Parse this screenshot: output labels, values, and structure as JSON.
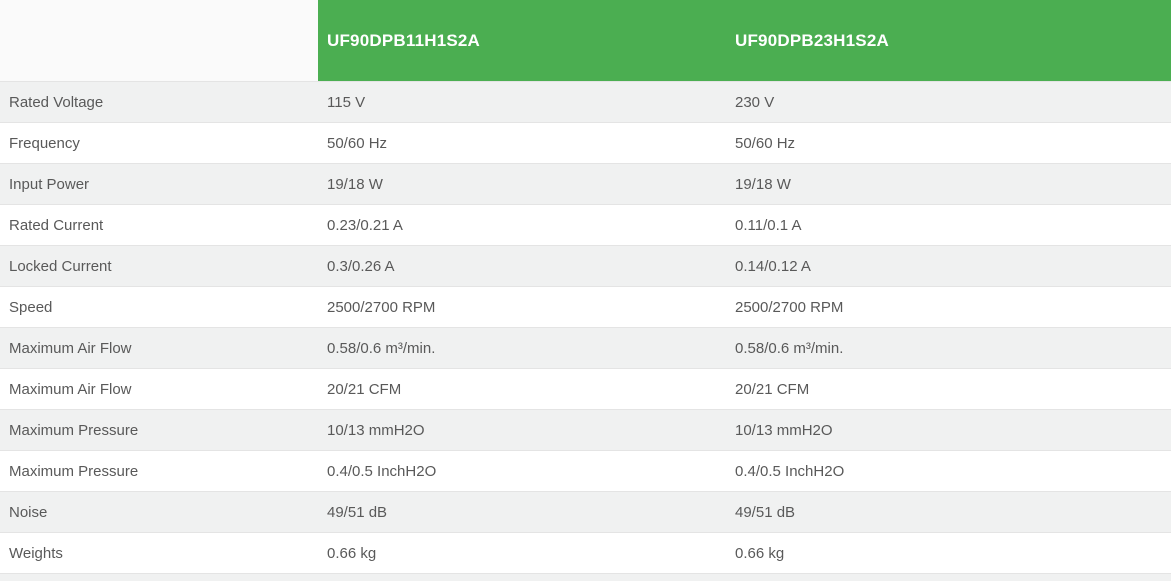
{
  "table": {
    "corner_label": "",
    "columns": [
      "UF90DPB11H1S2A",
      "UF90DPB23H1S2A"
    ],
    "rows": [
      {
        "label": "Rated Voltage",
        "values": [
          "115 V",
          "230 V"
        ]
      },
      {
        "label": "Frequency",
        "values": [
          "50/60 Hz",
          "50/60 Hz"
        ]
      },
      {
        "label": "Input Power",
        "values": [
          "19/18 W",
          "19/18 W"
        ]
      },
      {
        "label": "Rated Current",
        "values": [
          "0.23/0.21 A",
          "0.11/0.1 A"
        ]
      },
      {
        "label": "Locked Current",
        "values": [
          "0.3/0.26 A",
          "0.14/0.12 A"
        ]
      },
      {
        "label": "Speed",
        "values": [
          "2500/2700 RPM",
          "2500/2700 RPM"
        ]
      },
      {
        "label": "Maximum Air Flow",
        "values": [
          "0.58/0.6 m³/min.",
          "0.58/0.6 m³/min."
        ]
      },
      {
        "label": "Maximum Air Flow",
        "values": [
          "20/21 CFM",
          "20/21 CFM"
        ]
      },
      {
        "label": "Maximum Pressure",
        "values": [
          "10/13 mmH2O",
          "10/13 mmH2O"
        ]
      },
      {
        "label": "Maximum Pressure",
        "values": [
          "0.4/0.5 InchH2O",
          "0.4/0.5 InchH2O"
        ]
      },
      {
        "label": "Noise",
        "values": [
          "49/51 dB",
          "49/51 dB"
        ]
      },
      {
        "label": "Weights",
        "values": [
          "0.66 kg",
          "0.66 kg"
        ]
      }
    ],
    "colors": {
      "header_background": "#4bae51",
      "header_text": "#ffffff",
      "corner_background": "#fafafa",
      "stripe_row_background": "#f0f1f1",
      "white_row_background": "#ffffff",
      "body_text": "#595959",
      "row_border": "#e4e4e4"
    }
  }
}
